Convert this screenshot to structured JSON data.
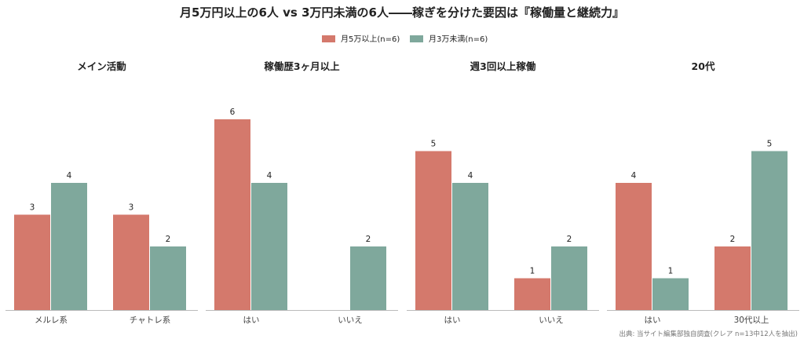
{
  "chart_data": {
    "type": "bar",
    "title": "月5万円以上の6人 vs 3万円未満の6人――稼ぎを分けた要因は『稼働量と継続力』",
    "legend_position": "top-center",
    "grid": false,
    "ylim": [
      0,
      6
    ],
    "series": [
      {
        "name": "月5万以上(n=6)",
        "color": "#d4796c"
      },
      {
        "name": "月3万未満(n=6)",
        "color": "#7fa89c"
      }
    ],
    "panels": [
      {
        "title": "メイン活動",
        "categories": [
          "メルレ系",
          "チャトレ系"
        ],
        "values": [
          [
            3,
            3
          ],
          [
            4,
            2
          ]
        ]
      },
      {
        "title": "稼働歴3ヶ月以上",
        "categories": [
          "はい",
          "いいえ"
        ],
        "values": [
          [
            6,
            0
          ],
          [
            4,
            2
          ]
        ]
      },
      {
        "title": "週3回以上稼働",
        "categories": [
          "はい",
          "いいえ"
        ],
        "values": [
          [
            5,
            1
          ],
          [
            4,
            2
          ]
        ]
      },
      {
        "title": "20代",
        "categories": [
          "はい",
          "30代以上"
        ],
        "values": [
          [
            4,
            2
          ],
          [
            1,
            5
          ]
        ]
      }
    ],
    "source": "出典: 当サイト編集部独自調査(クレア n=13中12人を抽出)"
  }
}
